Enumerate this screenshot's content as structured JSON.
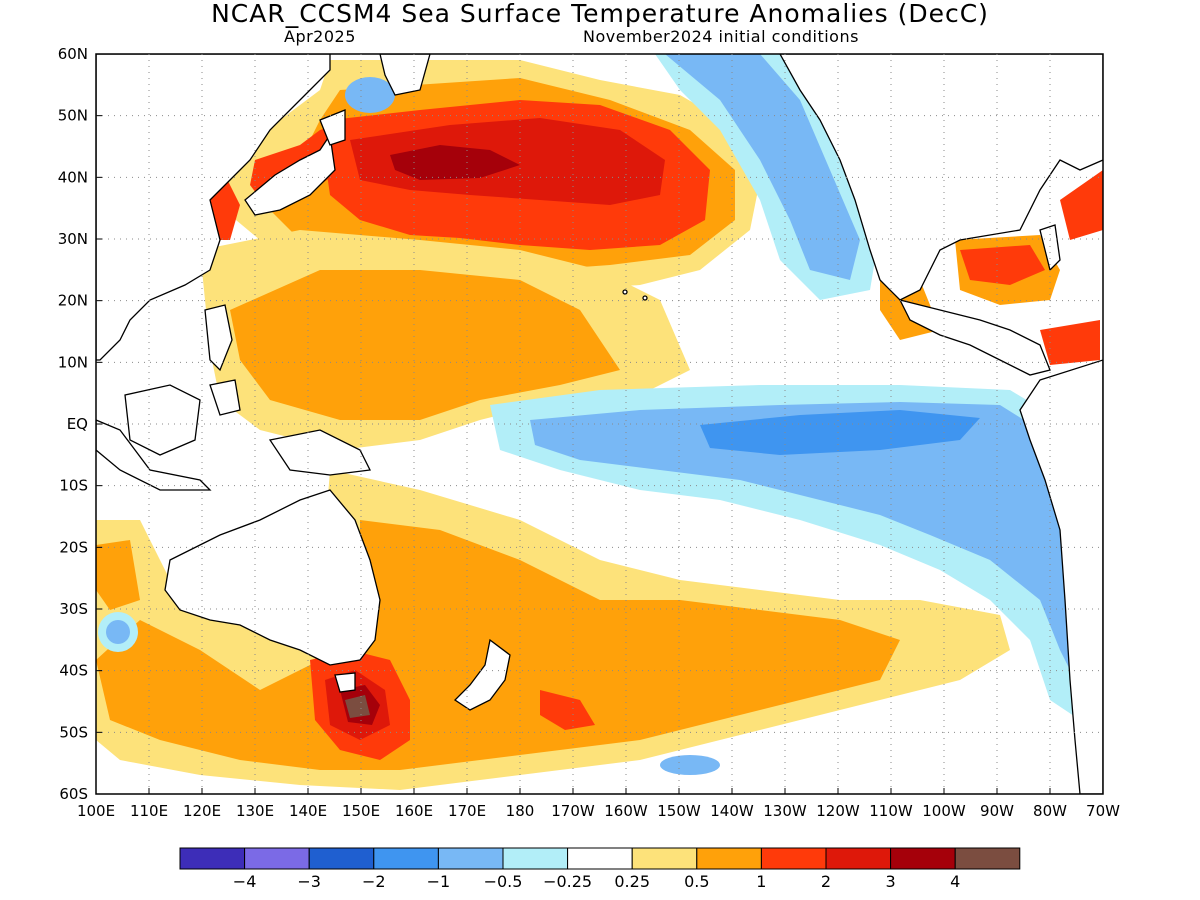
{
  "title": "NCAR_CCSM4 Sea Surface Temperature Anomalies (DecC)",
  "subtitle_left": "Apr2025",
  "subtitle_right": "November2024 initial conditions",
  "lat_labels": [
    "60N",
    "50N",
    "40N",
    "30N",
    "20N",
    "10N",
    "EQ",
    "10S",
    "20S",
    "30S",
    "40S",
    "50S",
    "60S"
  ],
  "lon_labels": [
    "100E",
    "110E",
    "120E",
    "130E",
    "140E",
    "150E",
    "160E",
    "170E",
    "180",
    "170W",
    "160W",
    "150W",
    "140W",
    "130W",
    "120W",
    "110W",
    "100W",
    "90W",
    "80W",
    "70W"
  ],
  "colorbar": {
    "colors": [
      "#3d2db8",
      "#7b6ae6",
      "#1f5fd0",
      "#3f95f0",
      "#78b8f5",
      "#b2eef8",
      "#ffffff",
      "#fde27a",
      "#ffa10a",
      "#ff3a0a",
      "#de180a",
      "#a5000a",
      "#7b4d40"
    ],
    "labels": [
      "−4",
      "−3",
      "−2",
      "−1",
      "−0.5",
      "−0.25",
      "0.25",
      "0.5",
      "1",
      "2",
      "3",
      "4"
    ]
  },
  "palette": {
    "light_blue": "#b2eef8",
    "mid_blue": "#78b8f5",
    "blue": "#3f95f0",
    "dark_blue": "#1f5fd0",
    "yellow": "#fde27a",
    "orange": "#ffa10a",
    "red_orange": "#ff3a0a",
    "red": "#de180a",
    "dark_red": "#a5000a",
    "brown": "#7b4d40",
    "land": "#ffffff",
    "coast": "#000000"
  }
}
